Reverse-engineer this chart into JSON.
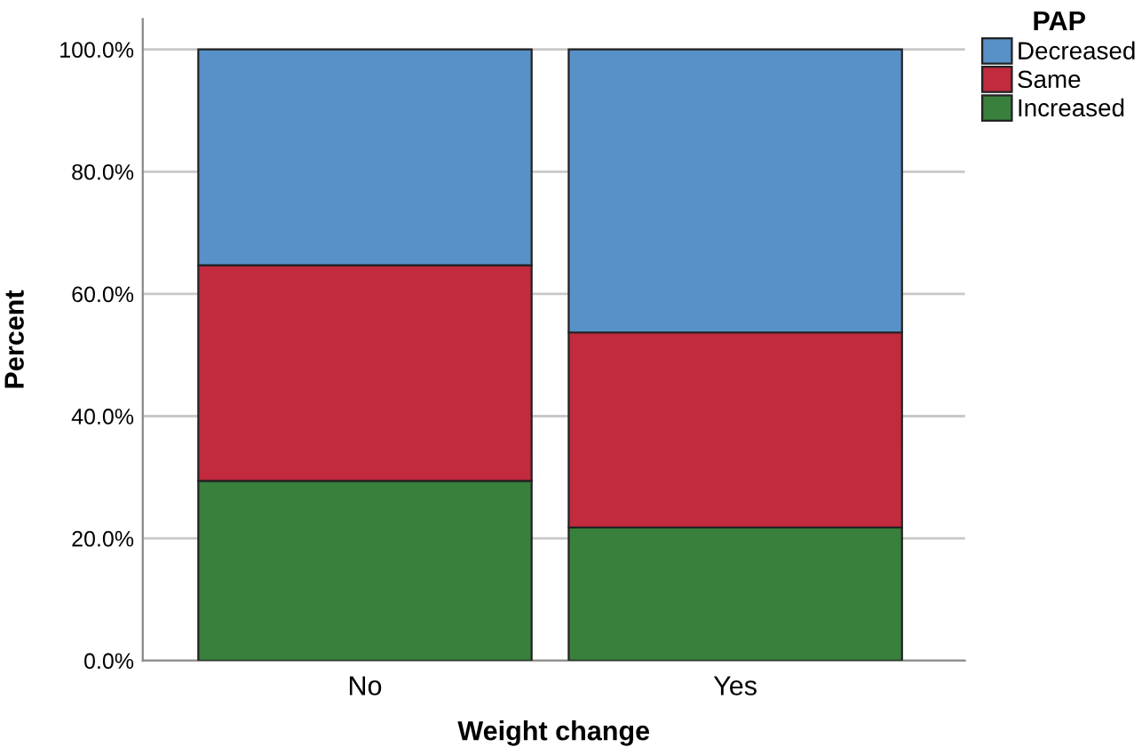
{
  "chart_data": {
    "type": "bar",
    "stacked": true,
    "xlabel": "Weight change",
    "ylabel": "Percent",
    "legend_title": "PAP",
    "legend": "top right",
    "grid": "y",
    "categories": [
      "No",
      "Yes"
    ],
    "series": [
      {
        "name": "Increased",
        "color": "#38803c",
        "values": [
          29.4,
          21.8
        ]
      },
      {
        "name": "Same",
        "color": "#c22a3e",
        "values": [
          35.3,
          31.9
        ]
      },
      {
        "name": "Decreased",
        "color": "#5891c8",
        "values": [
          35.3,
          46.3
        ]
      }
    ],
    "ylim": [
      0,
      105
    ],
    "yticks": [
      {
        "value": 0,
        "label": "0.0%"
      },
      {
        "value": 20,
        "label": "20.0%"
      },
      {
        "value": 40,
        "label": "40.0%"
      },
      {
        "value": 60,
        "label": "60.0%"
      },
      {
        "value": 80,
        "label": "80.0%"
      },
      {
        "value": 100,
        "label": "100.0%"
      }
    ]
  }
}
